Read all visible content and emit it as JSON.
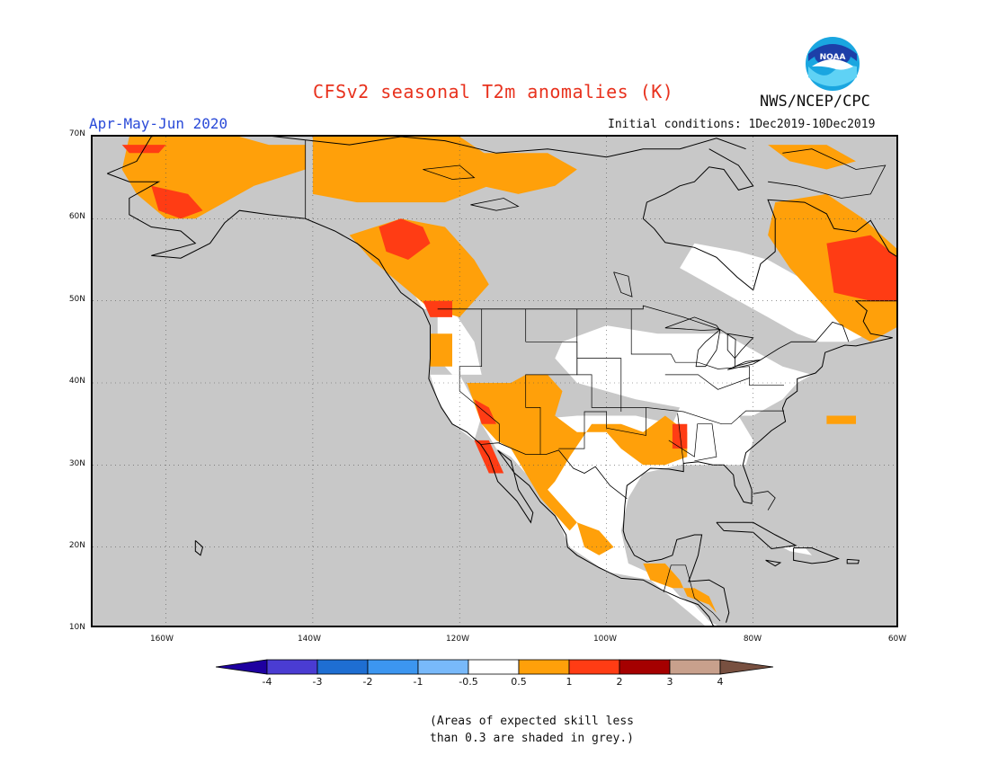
{
  "header": {
    "title": "CFSv2 seasonal T2m anomalies (K)",
    "season": "Apr-May-Jun 2020",
    "initial_conditions": "Initial conditions: 1Dec2019-10Dec2019",
    "agency": "NWS/NCEP/CPC",
    "logo_text": "NOAA"
  },
  "map": {
    "lat_labels": [
      "70N",
      "60N",
      "50N",
      "40N",
      "30N",
      "20N",
      "10N"
    ],
    "lon_labels": [
      "160W",
      "140W",
      "120W",
      "100W",
      "80W",
      "60W"
    ],
    "colors": {
      "no_skill": "#c8c8c8",
      "near_normal": "#ffffff",
      "warm_0_5_to_1": "#ffa00a",
      "warm_1_to_2": "#ff3c14",
      "boundaries": "#000000",
      "grid": "#555555"
    }
  },
  "colorbar": {
    "bins": [
      {
        "color": "#1e00a0"
      },
      {
        "color": "#4a3cd2"
      },
      {
        "color": "#1e6ed2"
      },
      {
        "color": "#3c96f0"
      },
      {
        "color": "#78b9fa"
      },
      {
        "color": "#ffffff"
      },
      {
        "color": "#ffa00a"
      },
      {
        "color": "#ff3c14"
      },
      {
        "color": "#a50000"
      },
      {
        "color": "#c8a08c"
      },
      {
        "color": "#785040"
      }
    ],
    "ticks": [
      "-4",
      "-3",
      "-2",
      "-1",
      "-0.5",
      "0.5",
      "1",
      "2",
      "3",
      "4"
    ]
  },
  "footnote": {
    "line1": "(Areas of expected skill less",
    "line2": "than 0.3 are shaded in grey.)"
  }
}
